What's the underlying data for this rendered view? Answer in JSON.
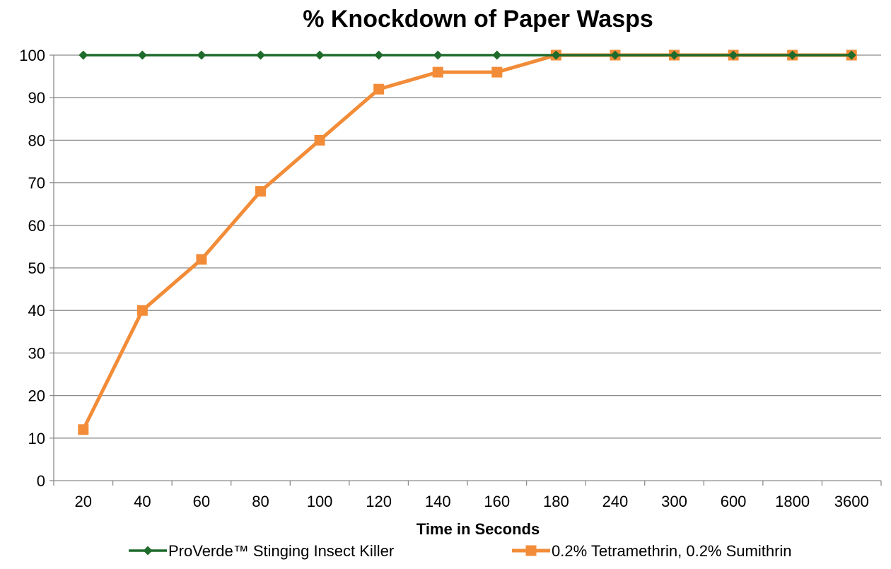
{
  "chart_data": {
    "type": "line",
    "title": "% Knockdown of Paper Wasps",
    "xlabel": "Time in Seconds",
    "ylabel": "",
    "categories": [
      "20",
      "40",
      "60",
      "80",
      "100",
      "120",
      "140",
      "160",
      "180",
      "240",
      "300",
      "600",
      "1800",
      "3600"
    ],
    "ylim": [
      0,
      100
    ],
    "yticks": [
      0,
      10,
      20,
      30,
      40,
      50,
      60,
      70,
      80,
      90,
      100
    ],
    "grid": "horizontal",
    "legend_position": "bottom",
    "series": [
      {
        "name": "ProVerde™ Stinging Insect Killer",
        "color": "#1e6b2b",
        "marker": "diamond",
        "values": [
          100,
          100,
          100,
          100,
          100,
          100,
          100,
          100,
          100,
          100,
          100,
          100,
          100,
          100
        ]
      },
      {
        "name": "0.2% Tetramethrin, 0.2% Sumithrin",
        "color": "#f28c38",
        "marker": "square",
        "values": [
          12,
          40,
          52,
          68,
          80,
          92,
          96,
          96,
          100,
          100,
          100,
          100,
          100,
          100
        ]
      }
    ]
  }
}
